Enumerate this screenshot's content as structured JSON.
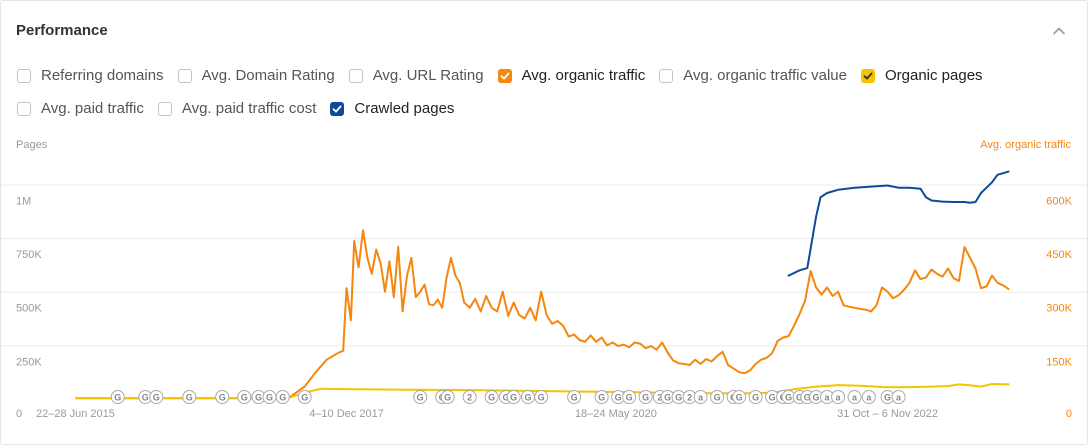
{
  "header": {
    "title": "Performance"
  },
  "metrics": {
    "row1": [
      {
        "label": "Referring domains",
        "checked": false,
        "color": ""
      },
      {
        "label": "Avg. Domain Rating",
        "checked": false,
        "color": ""
      },
      {
        "label": "Avg. URL Rating",
        "checked": false,
        "color": ""
      },
      {
        "label": "Avg. organic traffic",
        "checked": true,
        "color": "#f5870e"
      },
      {
        "label": "Avg. organic traffic value",
        "checked": false,
        "color": ""
      },
      {
        "label": "Organic pages",
        "checked": true,
        "color": "#f5c400"
      }
    ],
    "row2": [
      {
        "label": "Avg. paid traffic",
        "checked": false,
        "color": ""
      },
      {
        "label": "Avg. paid traffic cost",
        "checked": false,
        "color": ""
      },
      {
        "label": "Crawled pages",
        "checked": true,
        "color": "#0d4a9b"
      }
    ]
  },
  "chart_data": {
    "type": "line",
    "left_axis_label": "Pages",
    "right_axis_label": "Avg. organic traffic",
    "left_ticks": [
      "1M",
      "750K",
      "500K",
      "250K",
      "0"
    ],
    "left_tick_values": [
      1000000,
      750000,
      500000,
      250000,
      0
    ],
    "right_ticks": [
      "600K",
      "450K",
      "300K",
      "150K",
      "0"
    ],
    "right_tick_values": [
      600000,
      450000,
      300000,
      150000,
      0
    ],
    "left_ylim": [
      0,
      1100000
    ],
    "right_ylim": [
      0,
      660000
    ],
    "x_ticks": [
      "22–28 Jun 2015",
      "4–10 Dec 2017",
      "18–24 May 2020",
      "31 Oct – 6 Nov 2022"
    ],
    "x_range": [
      2015.47,
      2024.0
    ],
    "x_tick_positions": [
      2015.47,
      2017.93,
      2020.38,
      2022.85
    ],
    "grid": true,
    "series": [
      {
        "name": "Avg. organic traffic",
        "axis": "right",
        "color": "#f5870e",
        "x": [
          2015.47,
          2016.0,
          2016.5,
          2017.0,
          2017.4,
          2017.55,
          2017.65,
          2017.75,
          2017.85,
          2017.9,
          2017.93,
          2017.97,
          2018.0,
          2018.04,
          2018.08,
          2018.12,
          2018.16,
          2018.2,
          2018.24,
          2018.28,
          2018.32,
          2018.36,
          2018.4,
          2018.44,
          2018.48,
          2018.52,
          2018.56,
          2018.6,
          2018.64,
          2018.68,
          2018.72,
          2018.76,
          2018.8,
          2018.84,
          2018.88,
          2018.92,
          2018.96,
          2019.0,
          2019.05,
          2019.1,
          2019.15,
          2019.2,
          2019.25,
          2019.3,
          2019.35,
          2019.4,
          2019.45,
          2019.5,
          2019.55,
          2019.6,
          2019.65,
          2019.7,
          2019.75,
          2019.8,
          2019.85,
          2019.9,
          2019.95,
          2020.0,
          2020.05,
          2020.1,
          2020.15,
          2020.2,
          2020.25,
          2020.3,
          2020.35,
          2020.4,
          2020.45,
          2020.5,
          2020.55,
          2020.6,
          2020.65,
          2020.7,
          2020.75,
          2020.8,
          2020.85,
          2020.9,
          2020.95,
          2021.0,
          2021.05,
          2021.1,
          2021.15,
          2021.2,
          2021.25,
          2021.3,
          2021.35,
          2021.4,
          2021.45,
          2021.5,
          2021.55,
          2021.6,
          2021.65,
          2021.7,
          2021.75,
          2021.8,
          2021.85,
          2021.9,
          2021.95,
          2022.0,
          2022.05,
          2022.1,
          2022.15,
          2022.2,
          2022.25,
          2022.3,
          2022.35,
          2022.4,
          2022.45,
          2022.5,
          2022.55,
          2022.6,
          2022.65,
          2022.7,
          2022.75,
          2022.8,
          2022.85,
          2022.9,
          2022.95,
          2023.0,
          2023.05,
          2023.1,
          2023.15,
          2023.2,
          2023.25,
          2023.3,
          2023.35,
          2023.4,
          2023.45,
          2023.5,
          2023.55,
          2023.6,
          2023.65,
          2023.7,
          2023.75,
          2023.8,
          2023.85,
          2023.9,
          2023.95
        ],
        "y": [
          2000,
          2000,
          2000,
          2000,
          2000,
          35000,
          75000,
          110000,
          128000,
          135000,
          310000,
          220000,
          442000,
          368000,
          472000,
          395000,
          350000,
          418000,
          380000,
          300000,
          385000,
          285000,
          425000,
          245000,
          345000,
          395000,
          285000,
          300000,
          320000,
          265000,
          262000,
          278000,
          255000,
          340000,
          395000,
          345000,
          325000,
          270000,
          255000,
          280000,
          245000,
          288000,
          255000,
          245000,
          300000,
          232000,
          270000,
          235000,
          225000,
          255000,
          220000,
          300000,
          235000,
          210000,
          218000,
          205000,
          175000,
          180000,
          165000,
          160000,
          178000,
          160000,
          172000,
          150000,
          158000,
          148000,
          152000,
          145000,
          158000,
          155000,
          142000,
          148000,
          138000,
          158000,
          130000,
          108000,
          100000,
          98000,
          95000,
          110000,
          98000,
          112000,
          105000,
          120000,
          132000,
          95000,
          85000,
          75000,
          72000,
          80000,
          98000,
          110000,
          115000,
          128000,
          162000,
          172000,
          176000,
          205000,
          238000,
          275000,
          358000,
          312000,
          292000,
          312000,
          288000,
          300000,
          262000,
          258000,
          255000,
          252000,
          250000,
          245000,
          262000,
          312000,
          300000,
          282000,
          290000,
          305000,
          325000,
          360000,
          335000,
          340000,
          362000,
          350000,
          342000,
          365000,
          338000,
          330000,
          425000,
          395000,
          365000,
          310000,
          315000,
          345000,
          325000,
          318000,
          308000
        ]
      },
      {
        "name": "Organic pages",
        "axis": "left",
        "color": "#f5c400",
        "x": [
          2015.47,
          2016.5,
          2017.4,
          2017.55,
          2017.7,
          2017.9,
          2018.5,
          2019.0,
          2019.5,
          2020.0,
          2020.5,
          2021.0,
          2021.5,
          2021.8,
          2022.0,
          2022.2,
          2022.4,
          2022.6,
          2022.8,
          2023.0,
          2023.2,
          2023.4,
          2023.5,
          2023.6,
          2023.7,
          2023.8,
          2023.95
        ],
        "y": [
          4000,
          4000,
          4000,
          30000,
          48000,
          46000,
          43000,
          42000,
          38000,
          35000,
          32000,
          28000,
          26000,
          29000,
          45000,
          58000,
          65000,
          62000,
          56000,
          55000,
          57000,
          60000,
          68000,
          64000,
          58000,
          70000,
          68000
        ]
      },
      {
        "name": "Crawled pages",
        "axis": "left",
        "color": "#0d4a9b",
        "x": [
          2021.95,
          2022.05,
          2022.12,
          2022.2,
          2022.24,
          2022.3,
          2022.4,
          2022.55,
          2022.7,
          2022.85,
          2022.95,
          2023.05,
          2023.15,
          2023.2,
          2023.25,
          2023.35,
          2023.45,
          2023.55,
          2023.6,
          2023.65,
          2023.7,
          2023.75,
          2023.8,
          2023.85,
          2023.95
        ],
        "y": [
          575000,
          600000,
          610000,
          850000,
          940000,
          960000,
          975000,
          985000,
          990000,
          995000,
          985000,
          985000,
          980000,
          940000,
          925000,
          920000,
          918000,
          918000,
          915000,
          918000,
          960000,
          985000,
          1010000,
          1045000,
          1060000
        ]
      }
    ],
    "annotation_labels": [
      "G",
      "G",
      "G",
      "G",
      "G",
      "G",
      "G",
      "G",
      "G",
      "G",
      "G",
      "G",
      "G",
      "2",
      "G",
      "G",
      "G",
      "G",
      "G",
      "G",
      "G",
      "G",
      "G",
      "G",
      "2",
      "G",
      "G",
      "2",
      "a",
      "G",
      "G",
      "G",
      "G",
      "G",
      "G",
      "G",
      "G",
      "G",
      "G",
      "a",
      "a",
      "a",
      "a",
      "G",
      "a"
    ],
    "annotation_x": [
      2015.85,
      2016.1,
      2016.2,
      2016.5,
      2016.8,
      2017.0,
      2017.13,
      2017.23,
      2017.35,
      2017.55,
      2018.6,
      2018.8,
      2018.85,
      2019.05,
      2019.25,
      2019.38,
      2019.45,
      2019.58,
      2019.7,
      2020.0,
      2020.25,
      2020.4,
      2020.5,
      2020.65,
      2020.78,
      2020.85,
      2020.95,
      2021.05,
      2021.15,
      2021.3,
      2021.45,
      2021.5,
      2021.65,
      2021.8,
      2021.9,
      2021.95,
      2022.05,
      2022.12,
      2022.2,
      2022.3,
      2022.4,
      2022.55,
      2022.68,
      2022.85,
      2022.95
    ]
  }
}
